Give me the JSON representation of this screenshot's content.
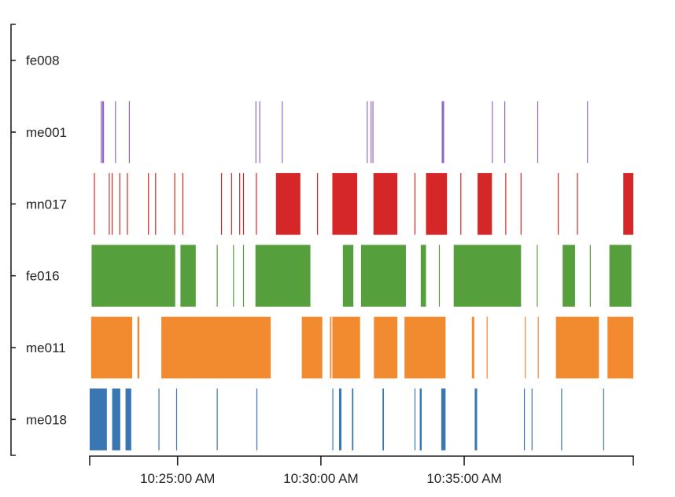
{
  "chart_data": {
    "type": "event-raster",
    "title": "",
    "xlabel": "",
    "ylabel": "",
    "x_domain": [
      "10:21:56 AM",
      "10:40:54 AM"
    ],
    "x_ticks": [
      "10:25:00 AM",
      "10:30:00 AM",
      "10:35:00 AM"
    ],
    "legend": "none",
    "grid": false,
    "series": [
      {
        "name": "fe008",
        "color": "#9467bd",
        "events": []
      },
      {
        "name": "me001",
        "color": "#9467bd",
        "events": [
          [
            "10:22:19 AM",
            "10:22:20 AM"
          ],
          [
            "10:22:22 AM",
            "10:22:23 AM"
          ],
          [
            "10:22:24 AM",
            "10:22:25 AM"
          ],
          [
            "10:22:49 AM",
            "10:22:50 AM"
          ],
          [
            "10:23:18 AM",
            "10:23:20 AM"
          ],
          [
            "10:27:43 AM",
            "10:27:44 AM"
          ],
          [
            "10:27:51 AM",
            "10:27:52 AM"
          ],
          [
            "10:28:38 AM",
            "10:28:39 AM"
          ],
          [
            "10:31:36 AM",
            "10:31:37 AM"
          ],
          [
            "10:31:44 AM",
            "10:31:45 AM"
          ],
          [
            "10:31:48 AM",
            "10:31:49 AM"
          ],
          [
            "10:34:13 AM",
            "10:34:18 AM"
          ],
          [
            "10:35:58 AM",
            "10:35:59 AM"
          ],
          [
            "10:36:24 AM",
            "10:36:25 AM"
          ],
          [
            "10:37:33 AM",
            "10:37:34 AM"
          ],
          [
            "10:39:17 AM",
            "10:39:18 AM"
          ]
        ]
      },
      {
        "name": "mn017",
        "color": "#d62728",
        "events": [
          [
            "10:22:05 AM",
            "10:22:06 AM"
          ],
          [
            "10:22:36 AM",
            "10:22:37 AM"
          ],
          [
            "10:22:42 AM",
            "10:22:43 AM"
          ],
          [
            "10:22:58 AM",
            "10:22:59 AM"
          ],
          [
            "10:23:14 AM",
            "10:23:15 AM"
          ],
          [
            "10:23:58 AM",
            "10:23:59 AM"
          ],
          [
            "10:24:13 AM",
            "10:24:14 AM"
          ],
          [
            "10:24:53 AM",
            "10:24:55 AM"
          ],
          [
            "10:25:10 AM",
            "10:25:11 AM"
          ],
          [
            "10:26:31 AM",
            "10:26:32 AM"
          ],
          [
            "10:26:52 AM",
            "10:26:53 AM"
          ],
          [
            "10:27:09 AM",
            "10:27:10 AM"
          ],
          [
            "10:27:17 AM",
            "10:27:19 AM"
          ],
          [
            "10:27:44 AM",
            "10:27:46 AM"
          ],
          [
            "10:28:26 AM",
            "10:29:17 AM"
          ],
          [
            "10:29:52 AM",
            "10:29:53 AM"
          ],
          [
            "10:30:24 AM",
            "10:31:16 AM"
          ],
          [
            "10:31:50 AM",
            "10:32:40 AM"
          ],
          [
            "10:33:16 AM",
            "10:33:17 AM"
          ],
          [
            "10:33:40 AM",
            "10:34:24 AM"
          ],
          [
            "10:34:52 AM",
            "10:34:53 AM"
          ],
          [
            "10:35:28 AM",
            "10:35:58 AM"
          ],
          [
            "10:36:26 AM",
            "10:36:27 AM"
          ],
          [
            "10:36:58 AM",
            "10:36:59 AM"
          ],
          [
            "10:38:16 AM",
            "10:38:17 AM"
          ],
          [
            "10:38:56 AM",
            "10:38:57 AM"
          ],
          [
            "10:40:33 AM",
            "10:40:54 AM"
          ]
        ]
      },
      {
        "name": "fe016",
        "color": "#55a03c",
        "events": [
          [
            "10:22:00 AM",
            "10:24:55 AM"
          ],
          [
            "10:25:06 AM",
            "10:25:38 AM"
          ],
          [
            "10:26:22 AM",
            "10:26:23 AM"
          ],
          [
            "10:26:56 AM",
            "10:26:57 AM"
          ],
          [
            "10:27:17 AM",
            "10:27:18 AM"
          ],
          [
            "10:27:43 AM",
            "10:29:38 AM"
          ],
          [
            "10:30:46 AM",
            "10:31:08 AM"
          ],
          [
            "10:31:24 AM",
            "10:32:58 AM"
          ],
          [
            "10:33:29 AM",
            "10:33:40 AM"
          ],
          [
            "10:34:07 AM",
            "10:34:08 AM"
          ],
          [
            "10:34:38 AM",
            "10:36:59 AM"
          ],
          [
            "10:37:32 AM",
            "10:37:33 AM"
          ],
          [
            "10:38:26 AM",
            "10:38:52 AM"
          ],
          [
            "10:39:23 AM",
            "10:39:24 AM"
          ],
          [
            "10:40:04 AM",
            "10:40:50 AM"
          ]
        ]
      },
      {
        "name": "me011",
        "color": "#f28a30",
        "events": [
          [
            "10:21:59 AM",
            "10:23:25 AM"
          ],
          [
            "10:23:36 AM",
            "10:23:40 AM"
          ],
          [
            "10:24:26 AM",
            "10:28:15 AM"
          ],
          [
            "10:29:20 AM",
            "10:30:03 AM"
          ],
          [
            "10:30:19 AM",
            "10:30:22 AM"
          ],
          [
            "10:30:24 AM",
            "10:31:22 AM"
          ],
          [
            "10:31:51 AM",
            "10:32:40 AM"
          ],
          [
            "10:32:55 AM",
            "10:34:21 AM"
          ],
          [
            "10:35:16 AM",
            "10:35:21 AM"
          ],
          [
            "10:35:47 AM",
            "10:35:48 AM"
          ],
          [
            "10:37:07 AM",
            "10:37:08 AM"
          ],
          [
            "10:37:34 AM",
            "10:37:35 AM"
          ],
          [
            "10:38:12 AM",
            "10:39:42 AM"
          ],
          [
            "10:40:00 AM",
            "10:40:54 AM"
          ]
        ]
      },
      {
        "name": "me018",
        "color": "#3a76b2",
        "events": [
          [
            "10:21:56 AM",
            "10:22:32 AM"
          ],
          [
            "10:22:43 AM",
            "10:23:00 AM"
          ],
          [
            "10:23:11 AM",
            "10:23:23 AM"
          ],
          [
            "10:24:20 AM",
            "10:24:21 AM"
          ],
          [
            "10:24:57 AM",
            "10:24:58 AM"
          ],
          [
            "10:26:22 AM",
            "10:26:23 AM"
          ],
          [
            "10:27:45 AM",
            "10:27:47 AM"
          ],
          [
            "10:30:24 AM",
            "10:30:25 AM"
          ],
          [
            "10:30:38 AM",
            "10:30:43 AM"
          ],
          [
            "10:31:05 AM",
            "10:31:08 AM"
          ],
          [
            "10:32:09 AM",
            "10:32:12 AM"
          ],
          [
            "10:33:16 AM",
            "10:33:17 AM"
          ],
          [
            "10:33:27 AM",
            "10:33:31 AM"
          ],
          [
            "10:34:12 AM",
            "10:34:21 AM"
          ],
          [
            "10:35:22 AM",
            "10:35:27 AM"
          ],
          [
            "10:37:05 AM",
            "10:37:07 AM"
          ],
          [
            "10:37:21 AM",
            "10:37:22 AM"
          ],
          [
            "10:38:23 AM",
            "10:38:25 AM"
          ],
          [
            "10:39:51 AM",
            "10:39:52 AM"
          ]
        ]
      }
    ]
  }
}
